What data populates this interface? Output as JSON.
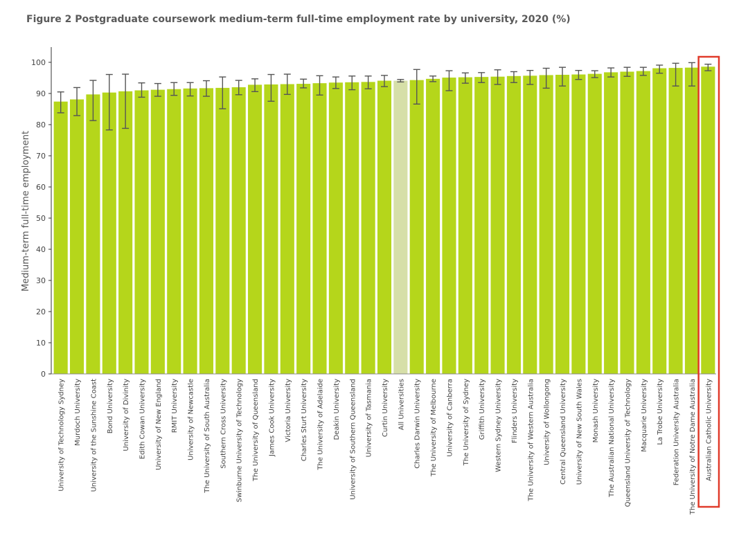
{
  "chart_data": {
    "type": "bar",
    "title": "Figure 2 Postgraduate coursework medium-term full-time employment rate by university, 2020 (%)",
    "xlabel": "",
    "ylabel": "Medium-term full-time employment",
    "ylim": [
      0,
      100
    ],
    "yticks": [
      0,
      10,
      20,
      30,
      40,
      50,
      60,
      70,
      80,
      90,
      100
    ],
    "grid": false,
    "legend": "none",
    "colors": {
      "bar": "#b5d61b",
      "highlight_bar": "#d6dfa8",
      "error_bar": "#555555",
      "highlight_box": "#e03a2a"
    },
    "highlighted_category": "Australian Catholic University",
    "categories": [
      "University of Technology Sydney",
      "Murdoch University",
      "University of the Sunshine Coast",
      "Bond University",
      "University of Divinity",
      "Edith Cowan University",
      "University of New England",
      "RMIT University",
      "University of Newcastle",
      "The University of South Australia",
      "Southern Cross University",
      "Swinburne University of Technology",
      "The University of Queensland",
      "James Cook University",
      "Victoria University",
      "Charles Sturt University",
      "The University of Adelaide",
      "Deakin University",
      "University of Southern Queensland",
      "University of Tasmania",
      "Curtin University",
      "All Universities",
      "Charles Darwin University",
      "The University of Melbourne",
      "University of Canberra",
      "The University of Sydney",
      "Griffith University",
      "Western Sydney University",
      "Flinders University",
      "The University of Western Australia",
      "University of Wollongong",
      "Central Queensland University",
      "University of New South Wales",
      "Monash University",
      "The Australian National University",
      "Queensland University of Technology",
      "Macquarie University",
      "La Trobe University",
      "Federation University Australia",
      "The University of Notre Dame Australia",
      "Australian Catholic University"
    ],
    "values": [
      87.4,
      88.1,
      89.7,
      90.3,
      90.7,
      91.0,
      91.2,
      91.4,
      91.6,
      91.7,
      91.8,
      92.0,
      92.8,
      92.9,
      93.0,
      93.1,
      93.3,
      93.5,
      93.6,
      93.7,
      94.1,
      94.1,
      94.3,
      94.7,
      95.1,
      95.2,
      95.3,
      95.4,
      95.6,
      95.7,
      95.9,
      96.0,
      96.1,
      96.3,
      96.8,
      97.0,
      97.2,
      98.1,
      98.2,
      98.3,
      98.6
    ],
    "error_low": [
      83.8,
      82.9,
      81.3,
      78.3,
      78.8,
      88.8,
      89.1,
      89.4,
      89.2,
      89.1,
      85.1,
      89.6,
      90.6,
      87.5,
      89.7,
      91.8,
      89.5,
      91.6,
      91.2,
      91.5,
      92.2,
      93.7,
      86.6,
      93.8,
      90.9,
      93.3,
      93.5,
      92.9,
      93.5,
      92.9,
      91.7,
      92.4,
      94.5,
      95.1,
      95.3,
      95.5,
      95.8,
      96.5,
      92.4,
      92.4,
      97.3
    ],
    "error_high": [
      90.5,
      91.9,
      94.2,
      96.1,
      96.2,
      93.4,
      93.2,
      93.5,
      93.5,
      94.1,
      95.3,
      94.2,
      94.7,
      96.1,
      96.2,
      94.6,
      95.7,
      95.3,
      95.6,
      95.6,
      95.8,
      94.5,
      97.7,
      95.6,
      97.3,
      96.6,
      96.7,
      97.6,
      97.0,
      97.4,
      98.1,
      98.4,
      97.4,
      97.3,
      98.2,
      98.4,
      98.4,
      99.1,
      99.7,
      99.9,
      99.4
    ]
  }
}
